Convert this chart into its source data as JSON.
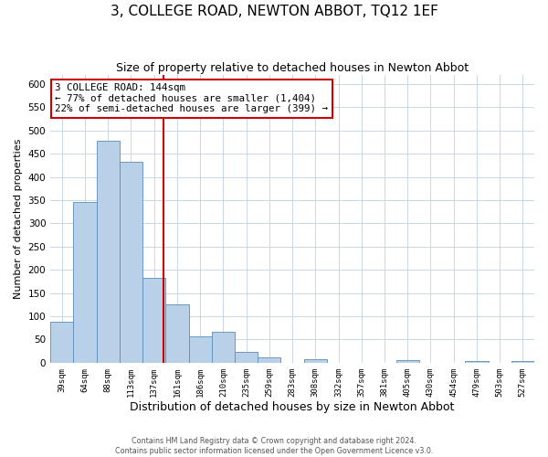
{
  "title": "3, COLLEGE ROAD, NEWTON ABBOT, TQ12 1EF",
  "subtitle": "Size of property relative to detached houses in Newton Abbot",
  "xlabel": "Distribution of detached houses by size in Newton Abbot",
  "ylabel": "Number of detached properties",
  "bin_labels": [
    "39sqm",
    "64sqm",
    "88sqm",
    "113sqm",
    "137sqm",
    "161sqm",
    "186sqm",
    "210sqm",
    "235sqm",
    "259sqm",
    "283sqm",
    "308sqm",
    "332sqm",
    "357sqm",
    "381sqm",
    "405sqm",
    "430sqm",
    "454sqm",
    "479sqm",
    "503sqm",
    "527sqm"
  ],
  "bin_values": [
    88,
    345,
    477,
    432,
    183,
    125,
    56,
    67,
    24,
    12,
    0,
    8,
    0,
    0,
    0,
    5,
    0,
    0,
    3,
    0,
    3
  ],
  "bar_color": "#b8d0e8",
  "bar_edge_color": "#5b8db8",
  "vline_x": 4.42,
  "vline_color": "#cc0000",
  "annotation_line1": "3 COLLEGE ROAD: 144sqm",
  "annotation_line2": "← 77% of detached houses are smaller (1,404)",
  "annotation_line3": "22% of semi-detached houses are larger (399) →",
  "annotation_box_color": "#ffffff",
  "annotation_box_edge_color": "#cc0000",
  "ylim": [
    0,
    620
  ],
  "yticks": [
    0,
    50,
    100,
    150,
    200,
    250,
    300,
    350,
    400,
    450,
    500,
    550,
    600
  ],
  "footer_text": "Contains HM Land Registry data © Crown copyright and database right 2024.\nContains public sector information licensed under the Open Government Licence v3.0.",
  "background_color": "#ffffff",
  "grid_color": "#c8d8e8",
  "title_fontsize": 11,
  "subtitle_fontsize": 9,
  "xlabel_fontsize": 9,
  "ylabel_fontsize": 8
}
